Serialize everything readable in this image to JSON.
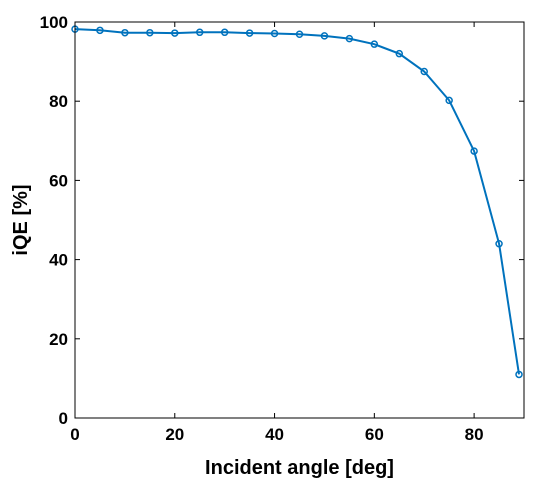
{
  "chart_data": {
    "type": "line",
    "title": "",
    "xlabel": "Incident angle [deg]",
    "ylabel": "iQE [%]",
    "xlim": [
      0,
      90
    ],
    "ylim": [
      0,
      100
    ],
    "xticks": [
      0,
      20,
      40,
      60,
      80
    ],
    "yticks": [
      0,
      20,
      40,
      60,
      80,
      100
    ],
    "grid": false,
    "box": true,
    "series": [
      {
        "color": "#0072bd",
        "marker": "circle",
        "x": [
          0,
          5,
          10,
          15,
          20,
          25,
          30,
          35,
          40,
          45,
          50,
          55,
          60,
          65,
          70,
          75,
          80,
          85,
          89
        ],
        "y": [
          98.2,
          97.9,
          97.3,
          97.3,
          97.2,
          97.4,
          97.4,
          97.2,
          97.1,
          96.9,
          96.5,
          95.8,
          94.4,
          92.0,
          87.5,
          80.2,
          67.4,
          44.0,
          11.0
        ]
      }
    ]
  }
}
